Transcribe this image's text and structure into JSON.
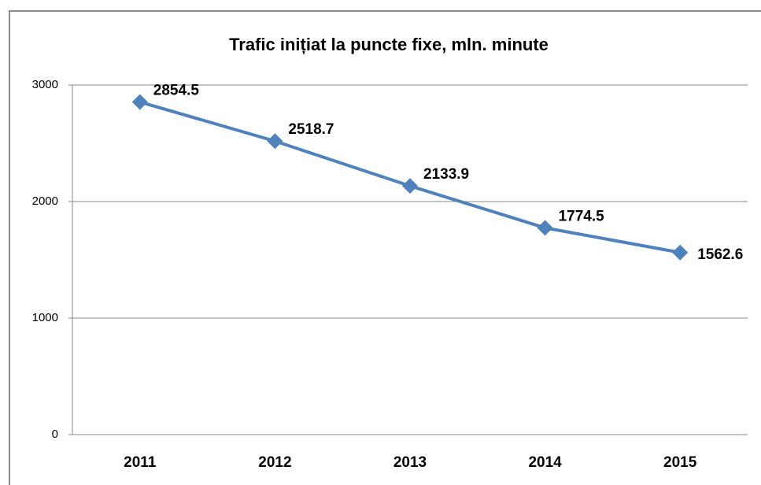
{
  "chart_data": {
    "type": "line",
    "title": "Trafic inițiat la puncte fixe, mln. minute",
    "categories": [
      "2011",
      "2012",
      "2013",
      "2014",
      "2015"
    ],
    "series": [
      {
        "name": "Trafic",
        "color": "#4f81bd",
        "values": [
          2854.5,
          2518.7,
          2133.9,
          1774.5,
          1562.6
        ]
      }
    ],
    "ylim": [
      0,
      3000
    ],
    "yticks": [
      0,
      1000,
      2000,
      3000
    ],
    "grid": true
  }
}
